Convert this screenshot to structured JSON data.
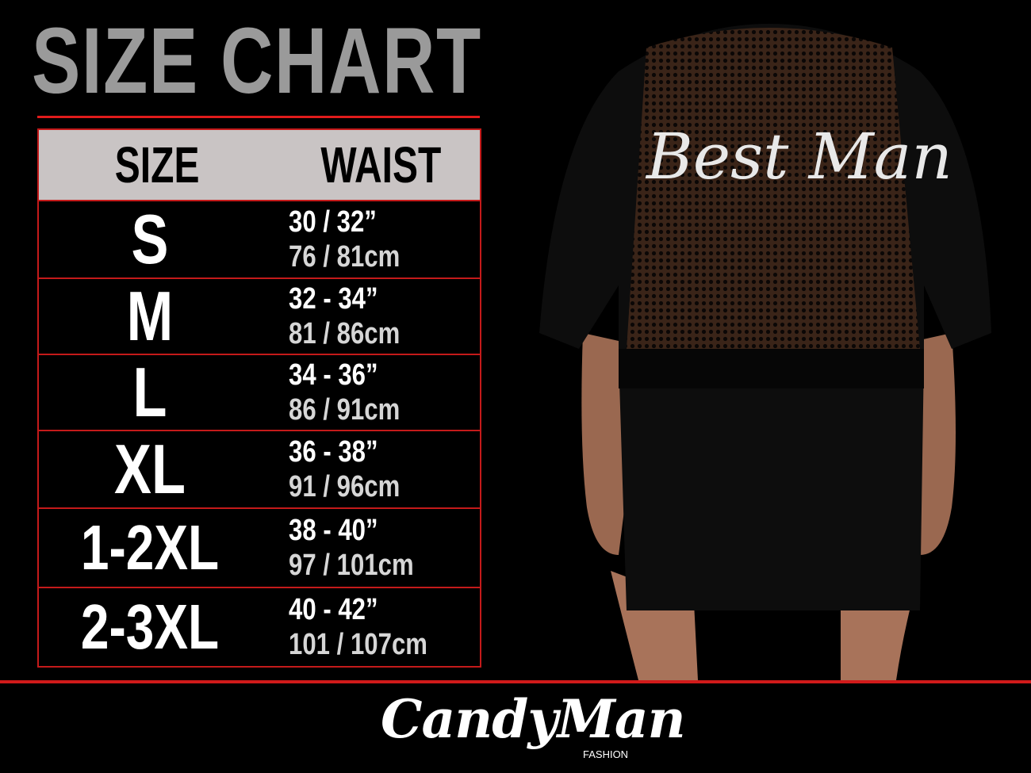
{
  "title": "SIZE CHART",
  "table": {
    "headers": [
      "SIZE",
      "WAIST"
    ],
    "rows": [
      {
        "size": "S",
        "inches": "30 / 32”",
        "cm": "76 / 81cm"
      },
      {
        "size": "M",
        "inches": "32 - 34”",
        "cm": "81 / 86cm"
      },
      {
        "size": "L",
        "inches": "34 - 36”",
        "cm": "86 / 91cm"
      },
      {
        "size": "XL",
        "inches": "36 - 38”",
        "cm": "91 / 96cm"
      },
      {
        "size": "1-2XL",
        "inches": "38 - 40”",
        "cm": "97 / 101cm"
      },
      {
        "size": "2-3XL",
        "inches": "40 - 42”",
        "cm": "101 / 107cm"
      }
    ]
  },
  "garment_print": "Best Man",
  "brand": {
    "name": "CandyMan",
    "sub": "FASHION"
  },
  "colors": {
    "accent": "#e01b1b",
    "header_bg": "#c9c4c4",
    "title": "#9a9a9a"
  }
}
